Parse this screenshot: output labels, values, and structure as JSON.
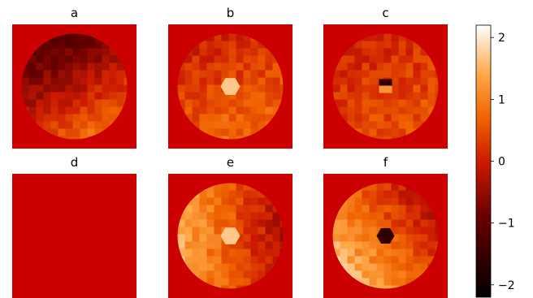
{
  "chart_data": {
    "type": "heatmap",
    "colormap": "gist_heat",
    "background_color": "#cc0000",
    "colorbar": {
      "range": [
        -2.2,
        2.2
      ],
      "ticks": [
        {
          "value": 2,
          "label": "2"
        },
        {
          "value": 1,
          "label": "1"
        },
        {
          "value": 0,
          "label": "0"
        },
        {
          "value": -1,
          "label": "−1"
        },
        {
          "value": -2,
          "label": "−2"
        }
      ]
    },
    "panels": [
      {
        "title": "a",
        "row": 0,
        "col": 0,
        "disk": true,
        "gradient": [
          0.45,
          0.95
        ],
        "center_hexagon": "none",
        "mean": 0.1
      },
      {
        "title": "b",
        "row": 0,
        "col": 1,
        "disk": true,
        "gradient": [
          0.15,
          0.35
        ],
        "center_hexagon": "bright",
        "mean": 0.4
      },
      {
        "title": "c",
        "row": 0,
        "col": 2,
        "disk": true,
        "gradient": [
          0.1,
          0.2
        ],
        "center_hexagon": "dark-bright",
        "mean": 0.3
      },
      {
        "title": "d",
        "row": 1,
        "col": 0,
        "disk": false,
        "gradient": [
          0,
          0
        ],
        "center_hexagon": "none",
        "mean": 0
      },
      {
        "title": "e",
        "row": 1,
        "col": 1,
        "disk": true,
        "gradient": [
          -0.9,
          0.0
        ],
        "center_hexagon": "bright",
        "mean": 0.6
      },
      {
        "title": "f",
        "row": 1,
        "col": 2,
        "disk": true,
        "gradient": [
          -0.7,
          0.5
        ],
        "center_hexagon": "dark",
        "mean": 0.7
      }
    ]
  }
}
